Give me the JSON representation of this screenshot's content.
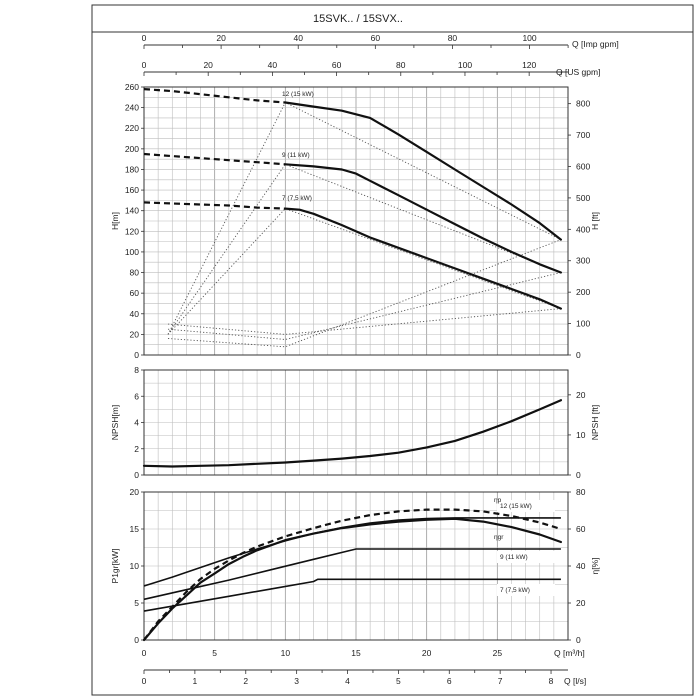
{
  "title": "15SVK.. / 15SVX..",
  "axes": {
    "top_q_imp": {
      "label": "Q [Imp gpm]",
      "range": [
        0,
        110
      ],
      "ticks": [
        0,
        20,
        40,
        60,
        80,
        100
      ]
    },
    "top_q_us": {
      "label": "Q [US gpm]",
      "range": [
        0,
        132
      ],
      "ticks": [
        0,
        20,
        40,
        60,
        80,
        100,
        120
      ]
    },
    "bottom_q_m3h": {
      "label": "Q [m³/h]",
      "range": [
        0,
        30
      ],
      "ticks": [
        0,
        5,
        10,
        15,
        20,
        25,
        30
      ]
    },
    "bottom_q_ls": {
      "label": "Q [l/s]",
      "range": [
        0,
        8.33
      ],
      "ticks": [
        0,
        1,
        2,
        3,
        4,
        5,
        6,
        7,
        8
      ]
    }
  },
  "chart_data": [
    {
      "type": "line",
      "panel": "head",
      "xlabel": "",
      "ylabel": "H[m]",
      "ylabel_right": "H [ft]",
      "ylim": [
        0,
        260
      ],
      "yticks": [
        0,
        20,
        40,
        60,
        80,
        100,
        120,
        140,
        160,
        180,
        200,
        220,
        240,
        260
      ],
      "ylim_right": [
        0,
        853
      ],
      "yticks_right": [
        0,
        100,
        200,
        300,
        400,
        500,
        600,
        700,
        800
      ],
      "x_unit": "m3/h",
      "grid": true,
      "series": [
        {
          "name": "12 (15 kW)",
          "dashed_to": 10,
          "points": [
            [
              0,
              258
            ],
            [
              2,
              256
            ],
            [
              4,
              253
            ],
            [
              6,
              250
            ],
            [
              8,
              247
            ],
            [
              10,
              245
            ],
            [
              12,
              241
            ],
            [
              14,
              237
            ],
            [
              16,
              230
            ],
            [
              18,
              214
            ],
            [
              20,
              197
            ],
            [
              22,
              180
            ],
            [
              24,
              163
            ],
            [
              26,
              146
            ],
            [
              28,
              128
            ],
            [
              29.5,
              112
            ]
          ]
        },
        {
          "name": "9 (11 kW)",
          "dashed_to": 10,
          "points": [
            [
              0,
              195
            ],
            [
              2,
              193
            ],
            [
              4,
              191
            ],
            [
              6,
              189
            ],
            [
              8,
              187
            ],
            [
              10,
              185
            ],
            [
              12,
              183
            ],
            [
              14,
              180
            ],
            [
              15,
              176
            ],
            [
              16,
              169
            ],
            [
              18,
              155
            ],
            [
              20,
              141
            ],
            [
              22,
              127
            ],
            [
              24,
              113
            ],
            [
              26,
              100
            ],
            [
              28,
              88
            ],
            [
              29.5,
              80
            ]
          ]
        },
        {
          "name": "7 (7,5 kW)",
          "dashed_to": 10,
          "points": [
            [
              0,
              148
            ],
            [
              2,
              147
            ],
            [
              4,
              146
            ],
            [
              6,
              145
            ],
            [
              8,
              143
            ],
            [
              10,
              142
            ],
            [
              11,
              141
            ],
            [
              12,
              137
            ],
            [
              14,
              126
            ],
            [
              16,
              114
            ],
            [
              18,
              104
            ],
            [
              20,
              94
            ],
            [
              22,
              84
            ],
            [
              24,
              74
            ],
            [
              26,
              64
            ],
            [
              28,
              54
            ],
            [
              29.5,
              45
            ]
          ]
        }
      ],
      "dotted_lines": [
        {
          "points": [
            [
              1.7,
              20
            ],
            [
              10,
              245
            ],
            [
              29.5,
              112
            ]
          ]
        },
        {
          "points": [
            [
              1.7,
              20
            ],
            [
              10,
              185
            ],
            [
              29.5,
              80
            ]
          ]
        },
        {
          "points": [
            [
              1.7,
              20
            ],
            [
              10,
              142
            ],
            [
              29.5,
              45
            ]
          ]
        },
        {
          "points": [
            [
              1.7,
              30
            ],
            [
              10,
              20
            ],
            [
              29.5,
              45
            ]
          ]
        },
        {
          "points": [
            [
              1.7,
              25
            ],
            [
              10,
              15
            ],
            [
              29.5,
              80
            ]
          ]
        },
        {
          "points": [
            [
              1.7,
              16
            ],
            [
              10,
              8
            ],
            [
              29.5,
              112
            ]
          ]
        }
      ]
    },
    {
      "type": "line",
      "panel": "npsh",
      "ylabel": "NPSH[m]",
      "ylabel_right": "NPSH [ft]",
      "ylim": [
        0,
        8
      ],
      "yticks": [
        0,
        2,
        4,
        6,
        8
      ],
      "ylim_right": [
        0,
        26.2
      ],
      "yticks_right": [
        0,
        10,
        20
      ],
      "x_unit": "m3/h",
      "grid": true,
      "series": [
        {
          "name": "NPSH",
          "points": [
            [
              0,
              0.7
            ],
            [
              2,
              0.65
            ],
            [
              4,
              0.7
            ],
            [
              6,
              0.75
            ],
            [
              8,
              0.85
            ],
            [
              10,
              0.95
            ],
            [
              12,
              1.1
            ],
            [
              14,
              1.25
            ],
            [
              16,
              1.45
            ],
            [
              18,
              1.7
            ],
            [
              20,
              2.1
            ],
            [
              22,
              2.6
            ],
            [
              24,
              3.3
            ],
            [
              26,
              4.1
            ],
            [
              28,
              5.0
            ],
            [
              29.5,
              5.7
            ]
          ]
        }
      ]
    },
    {
      "type": "line",
      "panel": "power_efficiency",
      "ylabel": "P1gr[kW]",
      "ylabel_right": "η[%]",
      "ylim": [
        0,
        20
      ],
      "yticks": [
        0,
        5,
        10,
        15,
        20
      ],
      "ylim_right": [
        0,
        80
      ],
      "yticks_right": [
        0,
        20,
        40,
        60,
        80
      ],
      "x_unit": "m3/h",
      "grid": true,
      "series": [
        {
          "name": "12 (15 kW)",
          "points": [
            [
              0,
              7.3
            ],
            [
              2,
              8.5
            ],
            [
              4,
              9.8
            ],
            [
              6,
              11.1
            ],
            [
              8,
              12.3
            ],
            [
              10,
              13.4
            ],
            [
              12,
              14.4
            ],
            [
              14,
              15.2
            ],
            [
              16,
              15.8
            ],
            [
              18,
              16.2
            ],
            [
              20,
              16.4
            ],
            [
              22,
              16.5
            ],
            [
              24,
              16.5
            ],
            [
              29.5,
              16.5
            ]
          ]
        },
        {
          "name": "9 (11 kW)",
          "points": [
            [
              0,
              5.5
            ],
            [
              3,
              6.8
            ],
            [
              6,
              8.1
            ],
            [
              9,
              9.5
            ],
            [
              12,
              10.9
            ],
            [
              15,
              12.3
            ],
            [
              29.5,
              12.3
            ]
          ]
        },
        {
          "name": "7 (7,5 kW)",
          "points": [
            [
              0,
              3.9
            ],
            [
              3,
              4.9
            ],
            [
              6,
              5.9
            ],
            [
              9,
              6.9
            ],
            [
              12,
              7.9
            ],
            [
              12.3,
              8.2
            ],
            [
              29.5,
              8.2
            ]
          ]
        },
        {
          "name": "ηgr",
          "axis": "right",
          "points": [
            [
              0,
              0
            ],
            [
              1,
              9
            ],
            [
              2,
              17
            ],
            [
              3,
              24
            ],
            [
              4,
              31
            ],
            [
              5,
              36
            ],
            [
              6,
              41
            ],
            [
              7,
              45
            ],
            [
              8,
              48.5
            ],
            [
              10,
              54
            ],
            [
              12,
              57.5
            ],
            [
              14,
              60.5
            ],
            [
              16,
              62.5
            ],
            [
              18,
              64
            ],
            [
              20,
              65
            ],
            [
              22,
              65.5
            ],
            [
              24,
              64
            ],
            [
              26,
              61
            ],
            [
              28,
              57
            ],
            [
              29.5,
              53
            ]
          ]
        },
        {
          "name": "ηp",
          "axis": "right",
          "dashed": true,
          "points": [
            [
              0,
              0
            ],
            [
              1,
              10
            ],
            [
              2,
              18
            ],
            [
              3,
              26
            ],
            [
              4,
              33
            ],
            [
              5,
              38.5
            ],
            [
              6,
              43
            ],
            [
              7,
              47
            ],
            [
              8,
              50.5
            ],
            [
              10,
              56
            ],
            [
              12,
              60.5
            ],
            [
              14,
              64.5
            ],
            [
              16,
              67.5
            ],
            [
              18,
              69.5
            ],
            [
              20,
              70.5
            ],
            [
              22,
              70.5
            ],
            [
              24,
              69.5
            ],
            [
              26,
              67
            ],
            [
              28,
              63.5
            ],
            [
              29.5,
              60
            ]
          ]
        }
      ],
      "annotations": [
        "12 (15 kW)",
        "9 (11 kW)",
        "7 (7,5 kW)",
        "ηp",
        "ηgr"
      ]
    }
  ],
  "labels": {
    "head_12": "12 (15 kW)",
    "head_9": "9 (11 kW)",
    "head_7": "7 (7,5 kW)",
    "pow_12": "12 (15 kW)",
    "pow_9": "9 (11 kW)",
    "pow_7": "7 (7,5 kW)",
    "eta_p": "ηp",
    "eta_gr": "ηgr"
  }
}
